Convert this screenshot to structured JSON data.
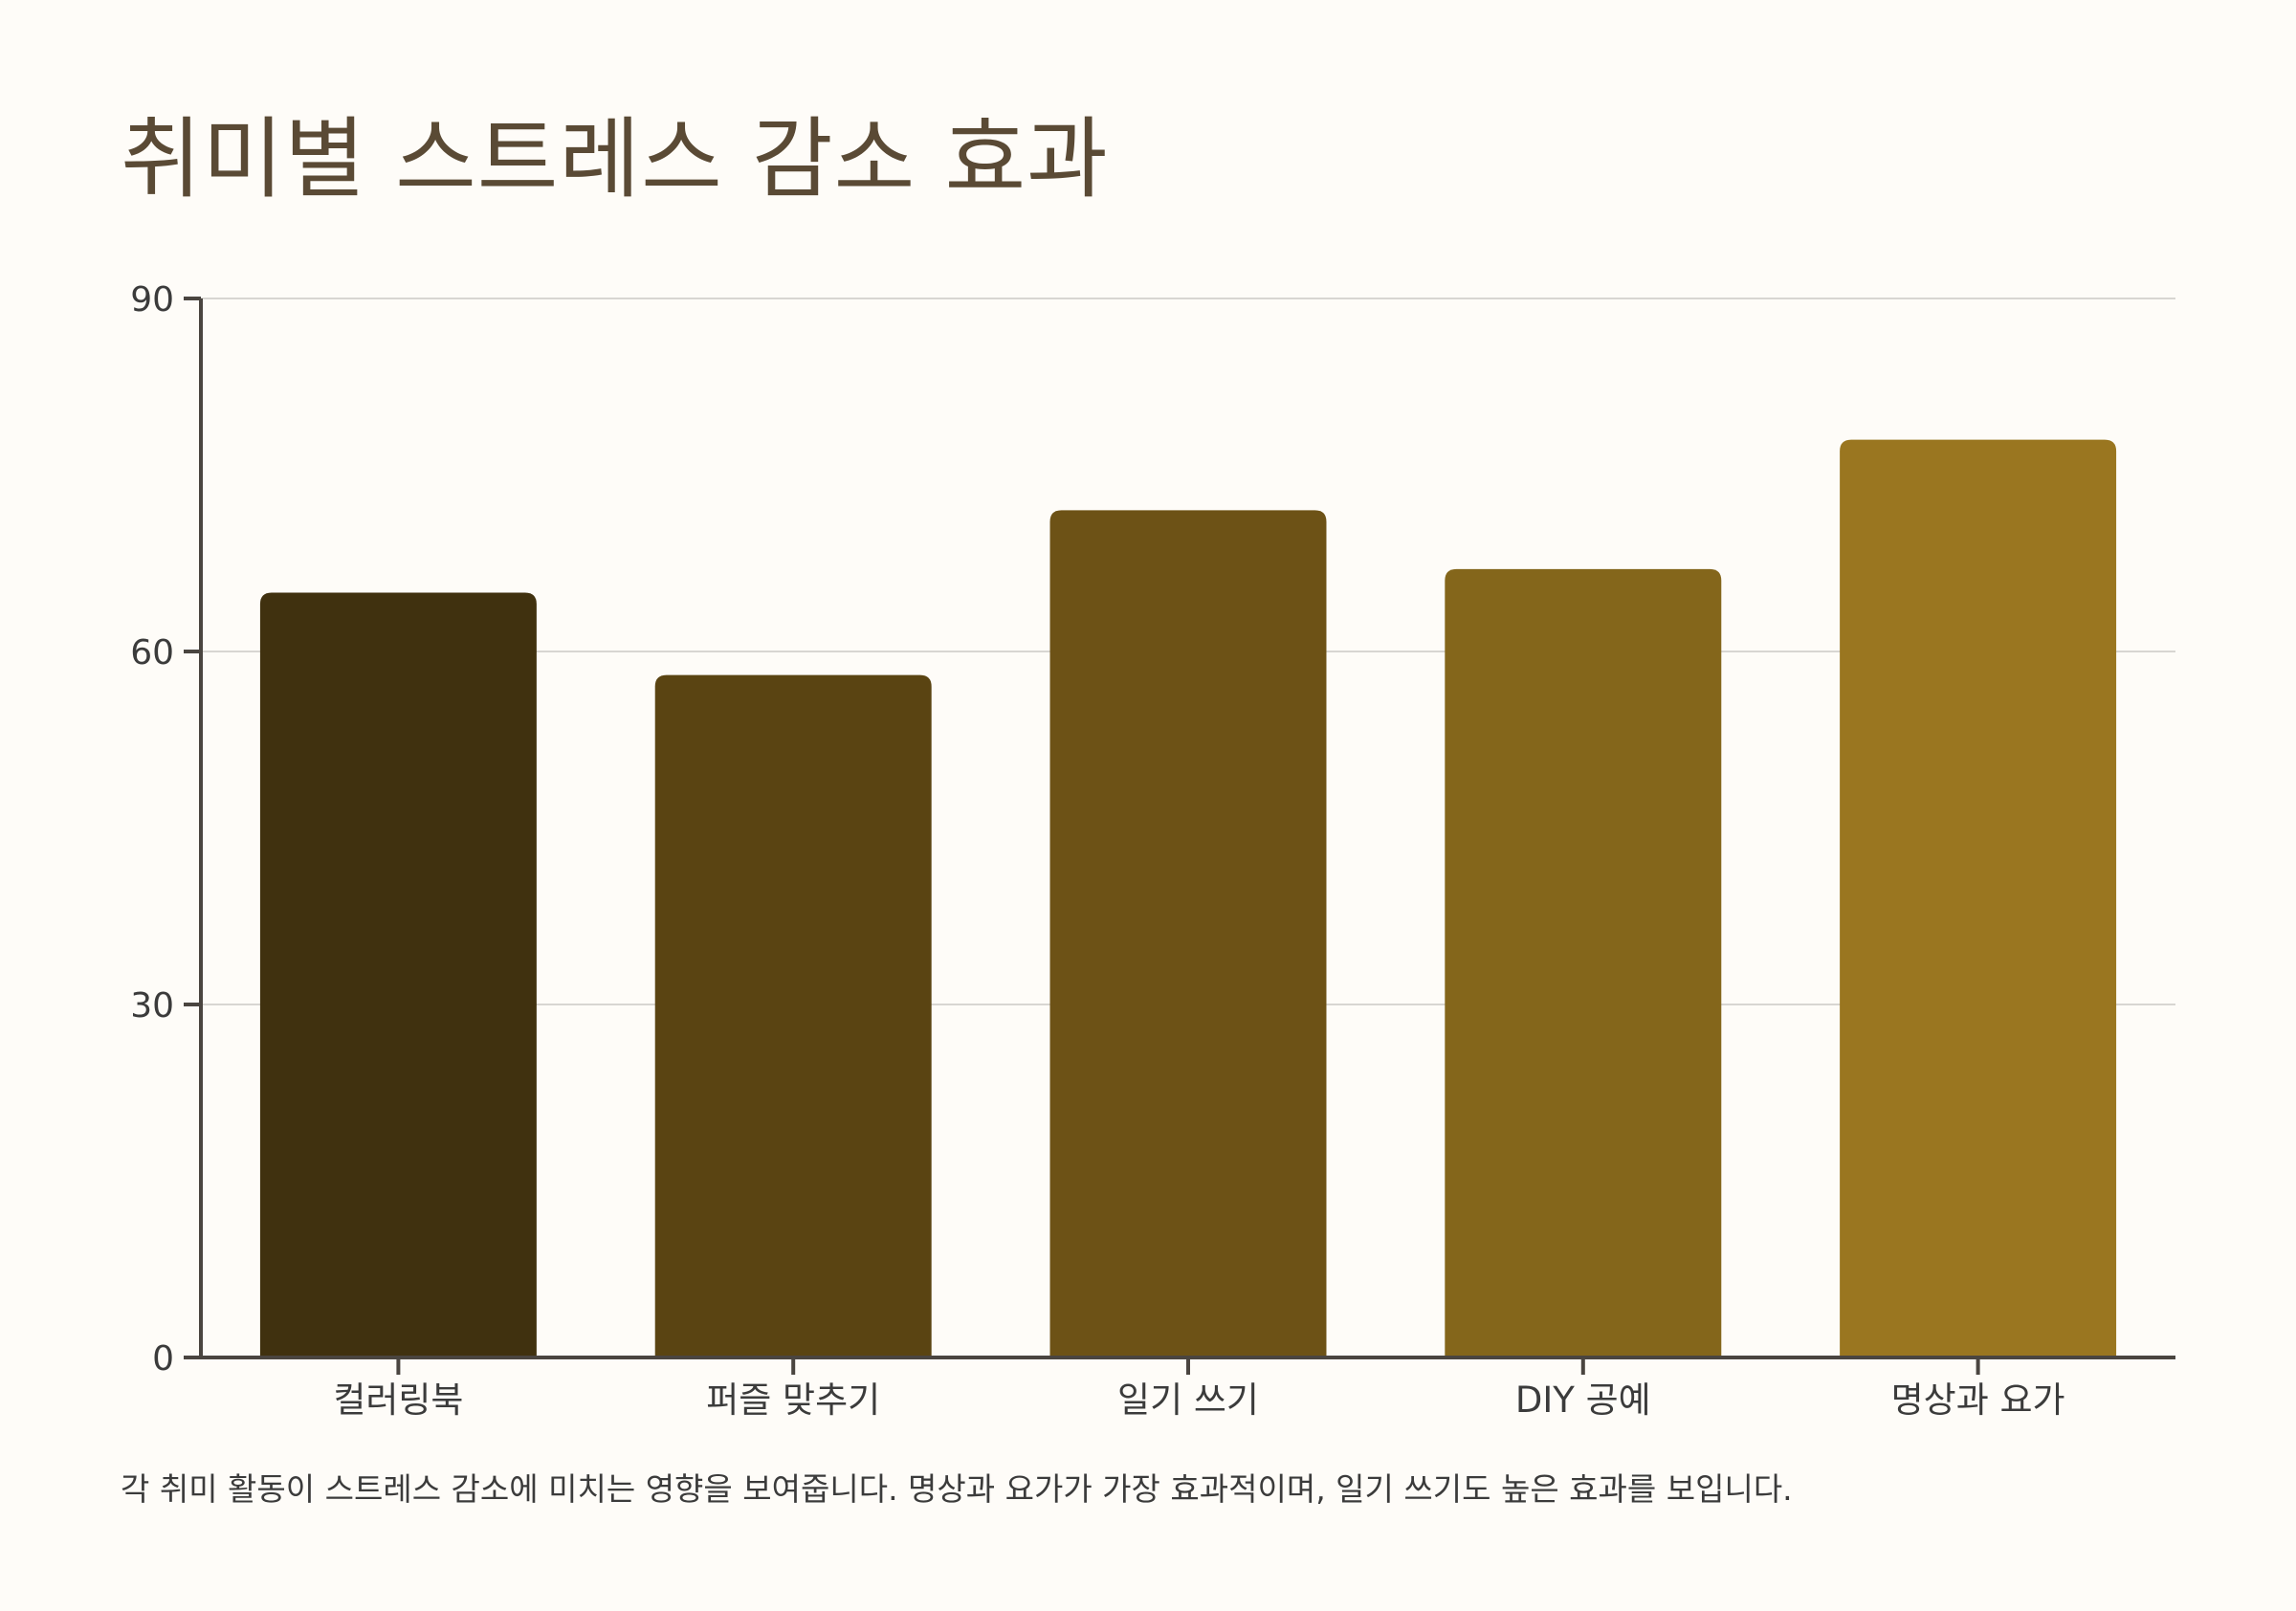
{
  "chart_data": {
    "type": "bar",
    "title": "취미별 스트레스 감소 효과",
    "caption": "각 취미 활동이 스트레스 감소에 미치는 영향을 보여줍니다. 명상과 요가가 가장 효과적이며, 일기 쓰기도 높은 효과를 보입니다.",
    "categories": [
      "컬러링북",
      "퍼즐 맞추기",
      "일기 쓰기",
      "DIY 공예",
      "명상과 요가"
    ],
    "values": [
      65,
      58,
      72,
      67,
      78
    ],
    "bar_colors": [
      "#40310f",
      "#5a4412",
      "#6d5216",
      "#84661b",
      "#9a7620"
    ],
    "ylim": [
      0,
      90
    ],
    "yticks": [
      0,
      30,
      60,
      90
    ],
    "xlabel": "",
    "ylabel": "",
    "grid": true,
    "colors": {
      "background": "#fefcf8",
      "title": "#5a4a35",
      "axis": "#4a4540",
      "grid": "#d8d6d2",
      "text": "#3b3b3b"
    }
  }
}
